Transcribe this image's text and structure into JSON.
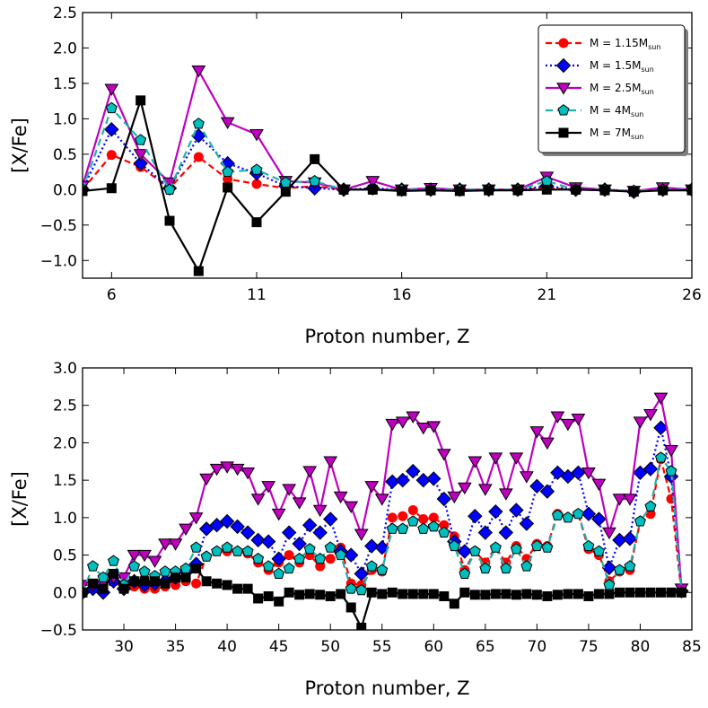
{
  "chart_data": [
    {
      "type": "line",
      "xlabel": "Proton number, Z",
      "ylabel": "[X/Fe]",
      "xlim": [
        5,
        26
      ],
      "ylim": [
        -1.25,
        2.5
      ],
      "xticks": [
        6,
        11,
        16,
        21,
        26
      ],
      "yticks": [
        -1.0,
        -0.5,
        0.0,
        0.5,
        1.0,
        1.5,
        2.0,
        2.5
      ],
      "ytick_labels": [
        "−1.0",
        "−0.5",
        "0.0",
        "0.5",
        "1.0",
        "1.5",
        "2.0",
        "2.5"
      ],
      "legend_position": "top-right",
      "x": [
        5,
        6,
        7,
        8,
        9,
        10,
        11,
        12,
        13,
        14,
        15,
        16,
        17,
        18,
        19,
        20,
        21,
        22,
        23,
        24,
        25,
        26
      ],
      "series": [
        {
          "name": "M = 1.15M",
          "mass": "1.15",
          "sub": "sun",
          "color": "#ff0000",
          "dash": "7,4",
          "marker": "circle",
          "values": [
            0.0,
            0.49,
            0.32,
            0.02,
            0.46,
            0.15,
            0.08,
            0.02,
            0.05,
            0.0,
            0.0,
            0.0,
            0.0,
            0.0,
            0.0,
            0.0,
            0.02,
            0.0,
            0.0,
            -0.02,
            0.0,
            0.0
          ]
        },
        {
          "name": "M = 1.5M",
          "mass": "1.5",
          "sub": "sun",
          "color": "#0000ff",
          "dash": "2,3",
          "marker": "diamond",
          "values": [
            0.0,
            0.85,
            0.37,
            0.02,
            0.76,
            0.37,
            0.23,
            0.05,
            0.02,
            0.0,
            0.02,
            0.0,
            0.0,
            0.0,
            0.0,
            0.0,
            0.05,
            0.0,
            0.0,
            -0.03,
            0.0,
            0.0
          ]
        },
        {
          "name": "M = 2.5M",
          "mass": "2.5",
          "sub": "sun",
          "color": "#bf00bf",
          "dash": "",
          "marker": "triangle",
          "values": [
            0.05,
            1.42,
            0.5,
            0.1,
            1.68,
            0.95,
            0.78,
            0.12,
            0.1,
            0.0,
            0.12,
            0.0,
            0.02,
            0.0,
            0.0,
            0.0,
            0.18,
            0.03,
            0.0,
            -0.02,
            0.03,
            0.0
          ]
        },
        {
          "name": "M = 4M",
          "mass": "4",
          "sub": "sun",
          "color": "#20b2aa",
          "fill": "#00bfbf",
          "dash": "8,5",
          "marker": "pentagon",
          "values": [
            0.0,
            1.15,
            0.7,
            0.0,
            0.93,
            0.25,
            0.28,
            0.1,
            0.12,
            0.0,
            0.0,
            0.0,
            0.0,
            0.0,
            0.0,
            0.0,
            0.12,
            0.0,
            0.0,
            -0.02,
            0.0,
            0.0
          ]
        },
        {
          "name": "M = 7M",
          "mass": "7",
          "sub": "sun",
          "color": "#000000",
          "dash": "",
          "marker": "square",
          "values": [
            -0.02,
            0.02,
            1.26,
            -0.44,
            -1.15,
            0.03,
            -0.46,
            -0.03,
            0.43,
            0.0,
            0.0,
            -0.02,
            -0.01,
            -0.02,
            -0.01,
            -0.01,
            0.0,
            0.0,
            -0.01,
            -0.03,
            -0.01,
            -0.01
          ]
        }
      ]
    },
    {
      "type": "line",
      "xlabel": "Proton number, Z",
      "ylabel": "[X/Fe]",
      "xlim": [
        26,
        85
      ],
      "ylim": [
        -0.5,
        3.0
      ],
      "xticks": [
        30,
        35,
        40,
        45,
        50,
        55,
        60,
        65,
        70,
        75,
        80,
        85
      ],
      "yticks": [
        -0.5,
        0.0,
        0.5,
        1.0,
        1.5,
        2.0,
        2.5,
        3.0
      ],
      "ytick_labels": [
        "−0.5",
        "0.0",
        "0.5",
        "1.0",
        "1.5",
        "2.0",
        "2.5",
        "3.0"
      ],
      "x": [
        26,
        27,
        28,
        29,
        30,
        31,
        32,
        33,
        34,
        35,
        36,
        37,
        38,
        39,
        40,
        41,
        42,
        43,
        44,
        45,
        46,
        47,
        48,
        49,
        50,
        51,
        52,
        53,
        54,
        55,
        56,
        57,
        58,
        59,
        60,
        61,
        62,
        63,
        64,
        65,
        66,
        67,
        68,
        69,
        70,
        71,
        72,
        73,
        74,
        75,
        76,
        77,
        78,
        79,
        80,
        81,
        82,
        83,
        84
      ],
      "series": [
        {
          "name": "M = 1.15M",
          "color": "#ff0000",
          "dash": "7,4",
          "marker": "circle",
          "values": [
            0.0,
            0.05,
            0.02,
            0.15,
            0.05,
            0.08,
            0.05,
            0.05,
            0.08,
            0.1,
            0.15,
            0.12,
            0.48,
            0.55,
            0.55,
            0.55,
            0.52,
            0.4,
            0.3,
            0.4,
            0.5,
            0.4,
            0.5,
            0.35,
            0.45,
            0.6,
            0.12,
            0.1,
            0.3,
            0.28,
            1.0,
            1.02,
            1.1,
            0.98,
            1.0,
            0.9,
            0.75,
            0.3,
            0.55,
            0.4,
            0.6,
            0.4,
            0.62,
            0.45,
            0.65,
            0.62,
            1.05,
            1.0,
            1.05,
            0.58,
            0.5,
            0.15,
            0.28,
            0.3,
            0.95,
            1.05,
            1.78,
            1.25,
            0.0
          ]
        },
        {
          "name": "M = 1.5M",
          "color": "#0000ff",
          "dash": "2,3",
          "marker": "diamond",
          "values": [
            0.0,
            0.05,
            0.0,
            0.15,
            0.05,
            0.15,
            0.1,
            0.12,
            0.15,
            0.2,
            0.28,
            0.38,
            0.85,
            0.9,
            0.95,
            0.88,
            0.8,
            0.7,
            0.68,
            0.45,
            0.8,
            0.65,
            0.9,
            0.8,
            0.98,
            0.55,
            0.5,
            0.25,
            0.62,
            0.6,
            1.48,
            1.5,
            1.62,
            1.5,
            1.52,
            1.25,
            0.68,
            0.55,
            1.02,
            0.8,
            1.08,
            0.8,
            1.1,
            0.92,
            1.42,
            1.35,
            1.6,
            1.55,
            1.6,
            1.05,
            0.98,
            0.33,
            0.7,
            0.72,
            1.6,
            1.65,
            2.2,
            1.55,
            0.02
          ]
        },
        {
          "name": "M = 2.5M",
          "color": "#bf00bf",
          "dash": "",
          "marker": "triangle",
          "values": [
            0.1,
            0.1,
            0.1,
            0.2,
            0.2,
            0.5,
            0.5,
            0.42,
            0.65,
            0.65,
            0.85,
            1.0,
            1.52,
            1.65,
            1.68,
            1.65,
            1.6,
            1.25,
            1.42,
            1.05,
            1.38,
            1.2,
            1.62,
            1.1,
            1.75,
            1.28,
            1.15,
            0.78,
            1.42,
            1.25,
            2.25,
            2.28,
            2.35,
            2.2,
            2.22,
            1.85,
            1.28,
            1.4,
            1.75,
            1.38,
            1.8,
            1.32,
            1.8,
            1.55,
            2.15,
            2.0,
            2.35,
            2.25,
            2.32,
            1.6,
            1.45,
            0.8,
            1.25,
            1.25,
            2.28,
            2.38,
            2.6,
            1.9,
            0.05
          ]
        },
        {
          "name": "M = 4M",
          "color": "#20b2aa",
          "fill": "#00bfbf",
          "dash": "8,5",
          "marker": "pentagon",
          "values": [
            0.0,
            0.35,
            0.2,
            0.42,
            0.1,
            0.35,
            0.28,
            0.22,
            0.28,
            0.28,
            0.32,
            0.6,
            0.48,
            0.55,
            0.6,
            0.55,
            0.55,
            0.45,
            0.35,
            0.25,
            0.32,
            0.45,
            0.58,
            0.45,
            0.6,
            0.5,
            0.05,
            0.03,
            0.35,
            0.3,
            0.85,
            0.85,
            0.95,
            0.85,
            0.88,
            0.8,
            0.62,
            0.25,
            0.55,
            0.32,
            0.6,
            0.32,
            0.58,
            0.35,
            0.62,
            0.6,
            1.03,
            1.0,
            1.05,
            0.62,
            0.55,
            0.1,
            0.3,
            0.35,
            0.95,
            1.15,
            1.8,
            1.62,
            0.0
          ]
        },
        {
          "name": "M = 7M",
          "color": "#000000",
          "dash": "",
          "marker": "square",
          "values": [
            0.0,
            0.12,
            0.05,
            0.25,
            0.05,
            0.15,
            0.15,
            0.15,
            0.12,
            0.2,
            0.2,
            0.32,
            0.15,
            0.12,
            0.1,
            0.05,
            0.05,
            -0.08,
            -0.05,
            -0.12,
            0.0,
            -0.03,
            -0.02,
            -0.03,
            -0.05,
            -0.02,
            -0.2,
            -0.47,
            0.0,
            -0.02,
            0.0,
            -0.02,
            -0.02,
            -0.02,
            -0.02,
            -0.05,
            -0.15,
            0.0,
            -0.03,
            -0.03,
            -0.02,
            -0.02,
            -0.03,
            -0.02,
            -0.03,
            -0.05,
            -0.03,
            -0.02,
            -0.02,
            -0.05,
            -0.02,
            -0.02,
            0.0,
            0.0,
            0.0,
            0.0,
            0.0,
            0.0,
            0.0
          ]
        }
      ]
    }
  ]
}
